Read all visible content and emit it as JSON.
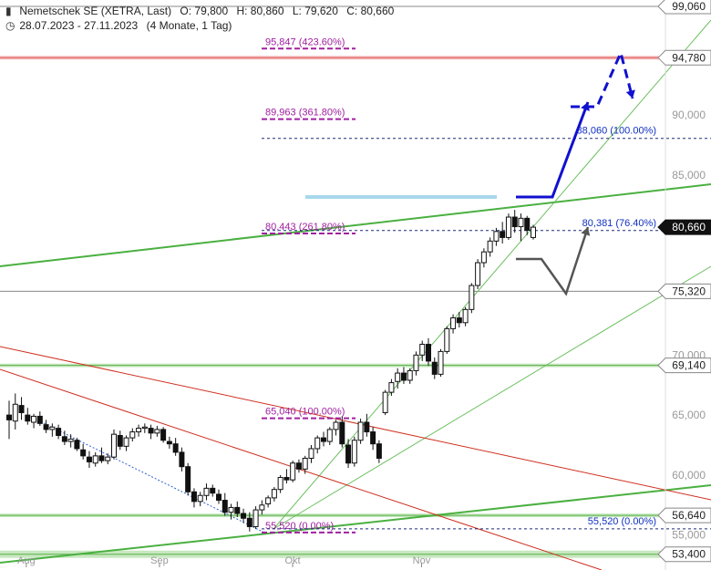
{
  "header": {
    "instrument": "Nemetschek SE (XETRA, Last)",
    "open": "O: 79,800",
    "high": "H: 80,860",
    "low": "L: 79,620",
    "close": "C: 80,660",
    "range": "28.07.2023 - 27.11.2023",
    "span": "(4 Monate, 1 Tag)"
  },
  "chart_data": {
    "type": "candlestick",
    "ylim": [
      53.0,
      99.06
    ],
    "y_ticks": [
      {
        "v": 55.0,
        "label": "55,000"
      },
      {
        "v": 60.0,
        "label": "60,000"
      },
      {
        "v": 65.0,
        "label": "65,000"
      },
      {
        "v": 70.0,
        "label": "70,000"
      },
      {
        "v": 85.0,
        "label": "85,000"
      },
      {
        "v": 90.0,
        "label": "90,000"
      }
    ],
    "x_labels": [
      {
        "date": "2023-08-01",
        "label": "Aug"
      },
      {
        "date": "2023-09-01",
        "label": "Sep"
      },
      {
        "date": "2023-10-02",
        "label": "Okt"
      },
      {
        "date": "2023-11-01",
        "label": "Nov"
      }
    ],
    "price_tags": [
      {
        "v": 99.06,
        "label": "99,060",
        "style": "plain"
      },
      {
        "v": 94.78,
        "label": "94,780",
        "style": "plain"
      },
      {
        "v": 75.32,
        "label": "75,320",
        "style": "plain"
      },
      {
        "v": 80.66,
        "label": "80,660",
        "style": "dark"
      },
      {
        "v": 69.14,
        "label": "69,140",
        "style": "plain"
      },
      {
        "v": 56.64,
        "label": "56,640",
        "style": "plain"
      },
      {
        "v": 53.4,
        "label": "53,400",
        "style": "plain"
      }
    ],
    "fib_left": [
      {
        "v": 95.847,
        "label": "95,847 (423.60%)"
      },
      {
        "v": 89.963,
        "label": "89,963 (361.80%)"
      },
      {
        "v": 80.443,
        "label": "80,443 (261.80%)"
      },
      {
        "v": 65.04,
        "label": "65,040 (100.00%)"
      },
      {
        "v": 55.52,
        "label": "55,520 (0.00%)"
      }
    ],
    "fib_right": [
      {
        "v": 88.06,
        "label": "88,060 (100.00%)"
      },
      {
        "v": 80.381,
        "label": "80,381 (76.40%)"
      },
      {
        "v": 55.52,
        "label": "55,520 (0.00%)"
      }
    ],
    "candles": [
      [
        65.0,
        66.2,
        63.0,
        64.6
      ],
      [
        64.5,
        66.8,
        63.8,
        65.9
      ],
      [
        65.8,
        66.5,
        64.6,
        65.2
      ],
      [
        65.0,
        65.6,
        64.2,
        64.5
      ],
      [
        64.4,
        65.1,
        63.9,
        64.9
      ],
      [
        64.9,
        65.3,
        64.1,
        64.3
      ],
      [
        64.2,
        64.6,
        63.5,
        63.8
      ],
      [
        63.8,
        64.3,
        63.2,
        64.0
      ],
      [
        63.9,
        64.2,
        63.0,
        63.3
      ],
      [
        63.2,
        63.7,
        62.5,
        62.8
      ],
      [
        62.8,
        63.4,
        62.3,
        63.0
      ],
      [
        62.9,
        63.1,
        62.0,
        62.2
      ],
      [
        62.1,
        62.6,
        61.3,
        61.6
      ],
      [
        61.5,
        62.0,
        60.6,
        61.1
      ],
      [
        61.0,
        61.9,
        60.7,
        61.6
      ],
      [
        61.6,
        62.3,
        61.0,
        61.2
      ],
      [
        61.2,
        61.8,
        60.9,
        61.5
      ],
      [
        61.5,
        63.8,
        61.3,
        63.4
      ],
      [
        63.3,
        63.7,
        62.1,
        62.4
      ],
      [
        62.4,
        63.3,
        62.0,
        63.1
      ],
      [
        63.1,
        63.9,
        62.8,
        63.6
      ],
      [
        63.6,
        64.2,
        63.2,
        63.9
      ],
      [
        63.9,
        64.3,
        63.5,
        64.0
      ],
      [
        63.9,
        64.2,
        63.0,
        63.5
      ],
      [
        63.5,
        64.1,
        63.2,
        63.8
      ],
      [
        63.8,
        64.0,
        62.7,
        62.9
      ],
      [
        62.8,
        63.2,
        62.2,
        62.6
      ],
      [
        62.6,
        63.1,
        61.6,
        61.9
      ],
      [
        61.9,
        62.3,
        60.3,
        60.7
      ],
      [
        60.7,
        61.0,
        58.3,
        58.6
      ],
      [
        58.6,
        58.9,
        57.3,
        57.8
      ],
      [
        57.8,
        58.6,
        57.4,
        58.3
      ],
      [
        58.3,
        59.3,
        57.9,
        58.9
      ],
      [
        58.9,
        59.2,
        58.2,
        58.5
      ],
      [
        58.4,
        58.8,
        57.6,
        57.9
      ],
      [
        57.9,
        58.5,
        56.6,
        56.9
      ],
      [
        56.9,
        57.6,
        56.3,
        57.3
      ],
      [
        57.3,
        57.8,
        56.5,
        56.8
      ],
      [
        56.8,
        57.2,
        56.0,
        56.4
      ],
      [
        56.4,
        56.9,
        55.3,
        55.7
      ],
      [
        55.7,
        57.4,
        55.5,
        57.1
      ],
      [
        57.1,
        57.9,
        56.7,
        57.5
      ],
      [
        57.6,
        58.3,
        57.3,
        58.1
      ],
      [
        58.1,
        59.0,
        57.8,
        58.8
      ],
      [
        58.8,
        60.0,
        58.5,
        59.8
      ],
      [
        59.8,
        60.5,
        59.3,
        59.6
      ],
      [
        59.6,
        61.2,
        59.4,
        61.0
      ],
      [
        61.0,
        61.3,
        60.2,
        60.5
      ],
      [
        60.5,
        61.6,
        60.1,
        61.4
      ],
      [
        61.4,
        62.5,
        61.0,
        62.2
      ],
      [
        62.2,
        63.3,
        61.8,
        63.1
      ],
      [
        63.1,
        63.6,
        62.4,
        62.8
      ],
      [
        62.8,
        64.0,
        62.5,
        63.8
      ],
      [
        63.8,
        64.6,
        63.3,
        64.4
      ],
      [
        64.4,
        64.9,
        62.3,
        62.6
      ],
      [
        62.5,
        63.0,
        60.6,
        61.0
      ],
      [
        61.0,
        63.2,
        60.7,
        62.9
      ],
      [
        62.9,
        64.7,
        62.6,
        64.4
      ],
      [
        64.4,
        65.1,
        63.2,
        63.6
      ],
      [
        63.6,
        64.0,
        62.1,
        62.6
      ],
      [
        62.6,
        62.9,
        61.0,
        61.4
      ],
      [
        65.2,
        67.1,
        65.0,
        66.9
      ],
      [
        66.9,
        68.0,
        66.6,
        67.7
      ],
      [
        67.8,
        68.9,
        67.2,
        68.5
      ],
      [
        68.5,
        69.0,
        67.6,
        67.9
      ],
      [
        67.9,
        68.9,
        67.6,
        68.7
      ],
      [
        68.7,
        70.3,
        68.3,
        70.0
      ],
      [
        70.0,
        71.2,
        69.5,
        70.9
      ],
      [
        70.9,
        71.4,
        69.1,
        69.5
      ],
      [
        69.4,
        69.8,
        68.0,
        68.4
      ],
      [
        68.4,
        70.5,
        68.2,
        70.3
      ],
      [
        70.3,
        72.4,
        70.1,
        72.2
      ],
      [
        72.2,
        73.4,
        71.8,
        73.1
      ],
      [
        73.1,
        73.6,
        72.3,
        72.7
      ],
      [
        72.7,
        74.0,
        72.4,
        73.8
      ],
      [
        73.8,
        76.0,
        73.5,
        75.8
      ],
      [
        75.8,
        78.0,
        75.5,
        77.7
      ],
      [
        77.7,
        78.9,
        77.3,
        78.6
      ],
      [
        78.6,
        79.8,
        78.2,
        79.5
      ],
      [
        79.5,
        80.6,
        79.1,
        80.3
      ],
      [
        80.3,
        81.1,
        79.3,
        79.8
      ],
      [
        79.8,
        81.8,
        79.6,
        81.5
      ],
      [
        81.5,
        82.1,
        80.2,
        80.7
      ],
      [
        80.7,
        81.8,
        79.5,
        81.4
      ],
      [
        81.4,
        81.6,
        80.0,
        80.4
      ],
      [
        79.8,
        80.86,
        79.62,
        80.66
      ]
    ],
    "projection": {
      "blue_path_solid": [
        [
          566,
          216
        ],
        [
          606,
          216
        ],
        [
          645,
          112
        ]
      ],
      "blue_path_dashed": [
        [
          626,
          117
        ],
        [
          655,
          117
        ],
        [
          681,
          58
        ],
        [
          694,
          108
        ]
      ],
      "gray_path": [
        [
          566,
          284
        ],
        [
          594,
          284
        ],
        [
          621,
          322
        ],
        [
          645,
          249
        ]
      ]
    }
  }
}
